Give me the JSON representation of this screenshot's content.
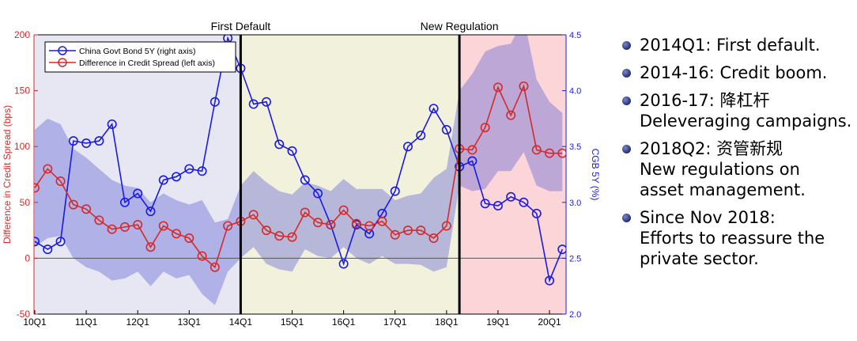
{
  "chart_data": {
    "type": "line",
    "periods": [
      "10Q1",
      "10Q2",
      "10Q3",
      "10Q4",
      "11Q1",
      "11Q2",
      "11Q3",
      "11Q4",
      "12Q1",
      "12Q2",
      "12Q3",
      "12Q4",
      "13Q1",
      "13Q2",
      "13Q3",
      "13Q4",
      "14Q1",
      "14Q2",
      "14Q3",
      "14Q4",
      "15Q1",
      "15Q2",
      "15Q3",
      "15Q4",
      "16Q1",
      "16Q2",
      "16Q3",
      "16Q4",
      "17Q1",
      "17Q2",
      "17Q3",
      "17Q4",
      "18Q1",
      "18Q2",
      "18Q3",
      "18Q4",
      "19Q1",
      "19Q2",
      "19Q3",
      "19Q4",
      "20Q1",
      "20Q2"
    ],
    "x_tick_labels": [
      "10Q1",
      "11Q1",
      "12Q1",
      "13Q1",
      "14Q1",
      "15Q1",
      "16Q1",
      "17Q1",
      "18Q1",
      "19Q1",
      "20Q1"
    ],
    "ylabel_left": "Difference in Credit Spread (bps)",
    "ylabel_right": "CGB 5Y (%)",
    "ylim_left": [
      -50,
      200
    ],
    "ylim_right": [
      2.0,
      4.5
    ],
    "left_ticks": [
      "-50",
      "0",
      "50",
      "100",
      "150",
      "200"
    ],
    "right_ticks": [
      "2.0",
      "2.5",
      "3.0",
      "3.5",
      "4.0",
      "4.5"
    ],
    "legend_position": "top-left",
    "series": [
      {
        "name": "China Govt Bond 5Y (right axis)",
        "axis": "right",
        "color": "#1a1ae6",
        "values": [
          2.65,
          2.58,
          2.65,
          3.55,
          3.53,
          3.55,
          3.7,
          3.0,
          3.08,
          2.92,
          3.2,
          3.23,
          3.3,
          3.28,
          3.9,
          4.47,
          4.2,
          3.88,
          3.9,
          3.52,
          3.46,
          3.2,
          3.08,
          2.8,
          2.45,
          2.8,
          2.72,
          2.9,
          3.1,
          3.5,
          3.6,
          3.84,
          3.65,
          3.32,
          3.37,
          2.99,
          2.97,
          3.05,
          3.0,
          2.9,
          2.3,
          2.58
        ]
      },
      {
        "name": "Difference in Credit Spread (left axis)",
        "axis": "left",
        "color": "#d42a2a",
        "values": [
          63,
          80,
          69,
          48,
          44,
          34,
          26,
          28,
          30,
          10,
          29,
          22,
          18,
          2,
          -8,
          29,
          33,
          39,
          25,
          20,
          19,
          41,
          32,
          30,
          43,
          31,
          29,
          33,
          21,
          25,
          25,
          18,
          29,
          98,
          97,
          117,
          153,
          128,
          154,
          97,
          94,
          94
        ]
      }
    ],
    "band_upper_left": [
      115,
      125,
      120,
      98,
      90,
      80,
      70,
      65,
      63,
      50,
      58,
      52,
      48,
      52,
      32,
      35,
      65,
      78,
      68,
      60,
      57,
      68,
      65,
      60,
      71,
      62,
      62,
      62,
      52,
      56,
      58,
      72,
      80,
      150,
      165,
      185,
      190,
      192,
      215,
      160,
      140,
      130
    ],
    "band_lower_left": [
      10,
      18,
      20,
      0,
      -8,
      -12,
      -20,
      -18,
      -12,
      -25,
      -12,
      -18,
      -15,
      -32,
      -42,
      -12,
      0,
      10,
      -5,
      -10,
      -12,
      8,
      2,
      0,
      10,
      0,
      -5,
      2,
      -5,
      -5,
      -6,
      -12,
      -8,
      65,
      60,
      62,
      78,
      78,
      95,
      65,
      60,
      60
    ],
    "periods_shaded": [
      {
        "from": "10Q1",
        "to": "14Q1",
        "color": "#e6e7f3"
      },
      {
        "from": "14Q1",
        "to": "18Q2",
        "color": "#f2f2dc"
      },
      {
        "from": "18Q2",
        "to": "20Q2",
        "color": "#fbd5d8"
      }
    ],
    "event_lines": [
      {
        "at": "14Q1",
        "label": "First Default"
      },
      {
        "at": "18Q2",
        "label": "New Regulation"
      }
    ]
  },
  "bullets": [
    {
      "lines": [
        "2014Q1: First default."
      ]
    },
    {
      "lines": [
        "2014-16: Credit boom."
      ]
    },
    {
      "lines": [
        "2016-17: 降杠杆",
        "Deleveraging campaigns."
      ]
    },
    {
      "lines": [
        "2018Q2: 资管新规",
        "New regulations on",
        "asset management."
      ]
    },
    {
      "lines": [
        "Since Nov 2018:",
        "Efforts to reassure the",
        "private sector."
      ]
    }
  ]
}
